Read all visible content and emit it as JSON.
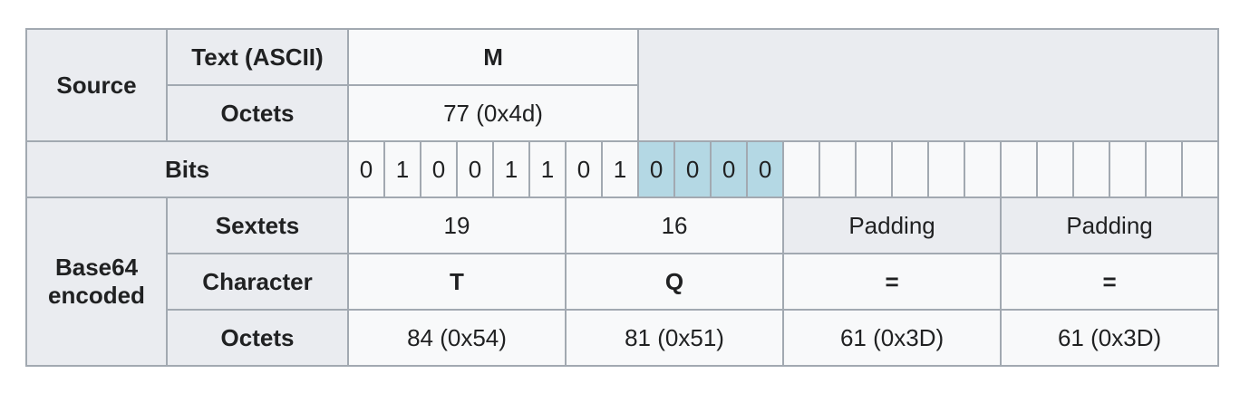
{
  "headers": {
    "source": "Source",
    "text_ascii": "Text (ASCII)",
    "octets": "Octets",
    "bits": "Bits",
    "base64_encoded": "Base64 encoded",
    "sextets": "Sextets",
    "character": "Character"
  },
  "source": {
    "text": "M",
    "octets": "77 (0x4d)"
  },
  "bits": {
    "data_bits": [
      "0",
      "1",
      "0",
      "0",
      "1",
      "1",
      "0",
      "1"
    ],
    "added_zero_bits": [
      "0",
      "0",
      "0",
      "0"
    ],
    "highlight_color": "#b4d8e4"
  },
  "base64": {
    "sextets": [
      "19",
      "16",
      "Padding",
      "Padding"
    ],
    "characters": [
      "T",
      "Q",
      "=",
      "="
    ],
    "octets": [
      "84 (0x54)",
      "81 (0x51)",
      "61 (0x3D)",
      "61 (0x3D)"
    ]
  }
}
